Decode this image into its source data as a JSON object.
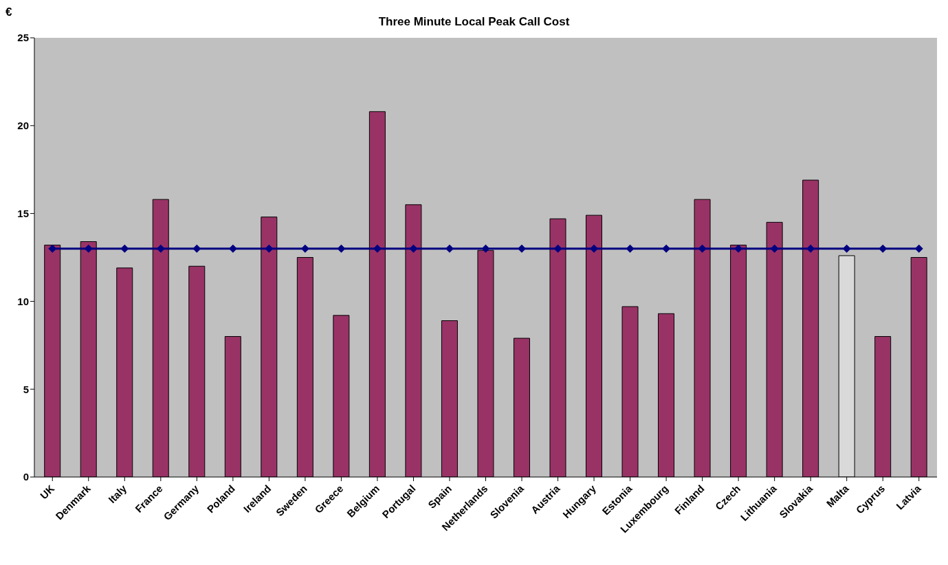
{
  "chart_data": {
    "type": "bar",
    "title": "Three Minute Local Peak Call Cost",
    "ylabel": "€",
    "categories": [
      "UK",
      "Denmark",
      "Italy",
      "France",
      "Germany",
      "Poland",
      "Ireland",
      "Sweden",
      "Greece",
      "Belgium",
      "Portugal",
      "Spain",
      "Netherlands",
      "Slovenia",
      "Austria",
      "Hungary",
      "Estonia",
      "Luxembourg",
      "Finland",
      "Czech",
      "Lithuania",
      "Slovakia",
      "Malta",
      "Cyprus",
      "Latvia"
    ],
    "series": [
      {
        "color": "#993366",
        "colors": [
          "#993366",
          "#993366",
          "#993366",
          "#993366",
          "#993366",
          "#993366",
          "#993366",
          "#993366",
          "#993366",
          "#993366",
          "#993366",
          "#993366",
          "#993366",
          "#993366",
          "#993366",
          "#993366",
          "#993366",
          "#993366",
          "#993366",
          "#993366",
          "#993366",
          "#993366",
          "#d9d9d9",
          "#993366",
          "#993366"
        ],
        "values": [
          13.2,
          13.4,
          11.9,
          15.8,
          12.0,
          8.0,
          14.8,
          12.5,
          9.2,
          20.8,
          15.5,
          8.9,
          12.9,
          7.9,
          14.7,
          14.9,
          9.7,
          9.3,
          15.8,
          13.2,
          14.5,
          16.9,
          12.6,
          8.0,
          12.5
        ]
      },
      {
        "type": "line",
        "color": "#000080",
        "marker": "diamond",
        "values": [
          13,
          13,
          13,
          13,
          13,
          13,
          13,
          13,
          13,
          13,
          13,
          13,
          13,
          13,
          13,
          13,
          13,
          13,
          13,
          13,
          13,
          13,
          13,
          13,
          13
        ]
      }
    ],
    "ylim": [
      0,
      25
    ],
    "yticks": [
      0,
      5,
      10,
      15,
      20,
      25
    ],
    "grid": false,
    "legend": false
  }
}
